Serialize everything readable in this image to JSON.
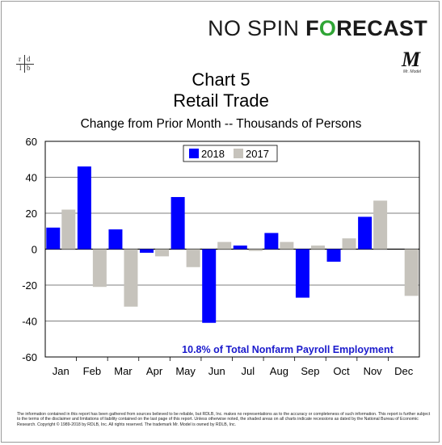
{
  "brand": {
    "part1": "NO SPIN ",
    "part2": "F",
    "part3": "O",
    "part4": "RECAST"
  },
  "logo_left": {
    "tl": "r",
    "tr": "d",
    "bl": "l",
    "br": "b"
  },
  "logo_right": {
    "mark": "M",
    "sub": "Mr. Model"
  },
  "colors": {
    "y2018": "#0000ff",
    "y2017": "#c6c3bc",
    "annotation": "#1a1acc",
    "brand_accent": "#2fa535"
  },
  "chart_data": {
    "type": "bar",
    "title": "Chart 5",
    "subtitle": "Retail Trade",
    "subtitle2": "Change from Prior Month -- Thousands of Persons",
    "categories": [
      "Jan",
      "Feb",
      "Mar",
      "Apr",
      "May",
      "Jun",
      "Jul",
      "Aug",
      "Sep",
      "Oct",
      "Nov",
      "Dec"
    ],
    "series": [
      {
        "name": "2018",
        "color": "#0000ff",
        "values": [
          12,
          46,
          11,
          -2,
          29,
          -41,
          2,
          9,
          -27,
          -7,
          18,
          null
        ]
      },
      {
        "name": "2017",
        "color": "#c6c3bc",
        "values": [
          22,
          -21,
          -32,
          -4,
          -10,
          4,
          -1,
          4,
          2,
          6,
          27,
          -26
        ]
      }
    ],
    "ylim": [
      -60,
      60
    ],
    "yticks": [
      60,
      40,
      20,
      0,
      -20,
      -40,
      -60
    ],
    "grid": true,
    "legend": "top-center",
    "annotation": "10.8% of Total Nonfarm Payroll Employment"
  },
  "footer": "The information contained in this report has been gathered from sources believed to be reliable, but RDLB, Inc. makes no representations as to the accuracy or completeness of such information. This report is further subject to the terms of the disclaimer and limitations of liability contained on the last page of this report. Unless otherwise noted, the shaded areas on all charts indicate recessions as dated by the National Bureau of Economic Research. Copyright © 1989-2018 by RDLB, Inc. All rights reserved. The trademark Mr. Model is owned by RDLB, Inc."
}
